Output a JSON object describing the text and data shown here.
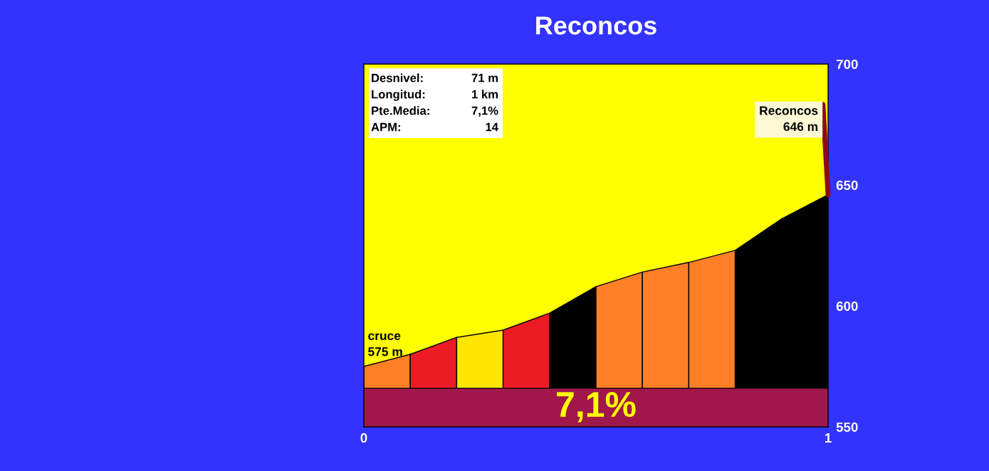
{
  "chart_data": {
    "type": "area",
    "title": "Reconcos",
    "series": [
      {
        "x": [
          0,
          0.1
        ],
        "values": [
          575,
          580
        ],
        "color": "#ff7f27"
      },
      {
        "x": [
          0.1,
          0.2
        ],
        "values": [
          580,
          587
        ],
        "color": "#ed1c24"
      },
      {
        "x": [
          0.2,
          0.3
        ],
        "values": [
          587,
          590
        ],
        "color": "#ffe600"
      },
      {
        "x": [
          0.3,
          0.4
        ],
        "values": [
          590,
          597
        ],
        "color": "#ed1c24"
      },
      {
        "x": [
          0.4,
          0.5
        ],
        "values": [
          597,
          608
        ],
        "color": "#000000"
      },
      {
        "x": [
          0.5,
          0.6
        ],
        "values": [
          608,
          614
        ],
        "color": "#ff7f27"
      },
      {
        "x": [
          0.6,
          0.7
        ],
        "values": [
          614,
          618
        ],
        "color": "#ff7f27"
      },
      {
        "x": [
          0.7,
          0.8
        ],
        "values": [
          618,
          623
        ],
        "color": "#ff7f27"
      },
      {
        "x": [
          0.8,
          0.9
        ],
        "values": [
          623,
          636
        ],
        "color": "#000000"
      },
      {
        "x": [
          0.9,
          1
        ],
        "values": [
          636,
          646
        ],
        "color": "#000000"
      }
    ],
    "xlim": [
      0,
      1
    ],
    "xticks": [
      0,
      1
    ],
    "ylim": [
      550,
      700
    ],
    "yticks": [
      550,
      600,
      650,
      700
    ],
    "bands": [
      {
        "axis": "y",
        "from": 550,
        "to": 566,
        "label": "7,1%",
        "color": "#a0174b"
      }
    ],
    "annotations": [
      "Desnivel:",
      "71 m",
      "Longitud:",
      "1 km",
      "Pte.Media:",
      "7,1%",
      "APM:",
      "14",
      {
        "text": "cruce\n575 m",
        "x": 0,
        "y": 575
      },
      {
        "text": "Reconcos\n646 m",
        "x": 1,
        "y": 646
      }
    ]
  }
}
